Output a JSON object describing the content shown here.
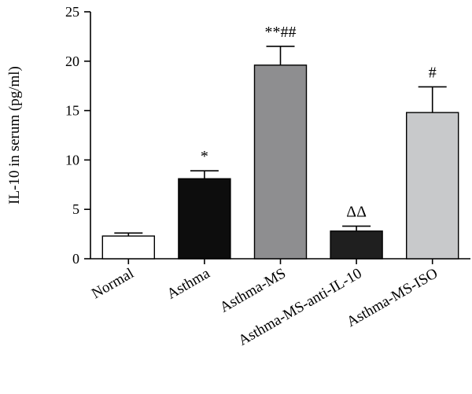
{
  "chart_data": {
    "type": "bar",
    "categories": [
      "Normal",
      "Asthma",
      "Asthma-MS",
      "Asthma-MS-anti-IL-10",
      "Asthma-MS-ISO"
    ],
    "values": [
      2.3,
      8.1,
      19.6,
      2.8,
      14.8
    ],
    "errors": [
      0.3,
      0.8,
      1.9,
      0.5,
      2.6
    ],
    "colors": [
      "#ffffff",
      "#0d0d0d",
      "#8e8e90",
      "#1f1f1f",
      "#c8c9cb"
    ],
    "annotations": [
      "",
      "*",
      "**##",
      "ΔΔ",
      "#"
    ],
    "title": "",
    "xlabel": "",
    "ylabel": "IL-10 in serum (pg/ml)",
    "ylim": [
      0,
      25
    ],
    "yticks": [
      0,
      5,
      10,
      15,
      20,
      25
    ],
    "grid": false,
    "legend": "none"
  }
}
